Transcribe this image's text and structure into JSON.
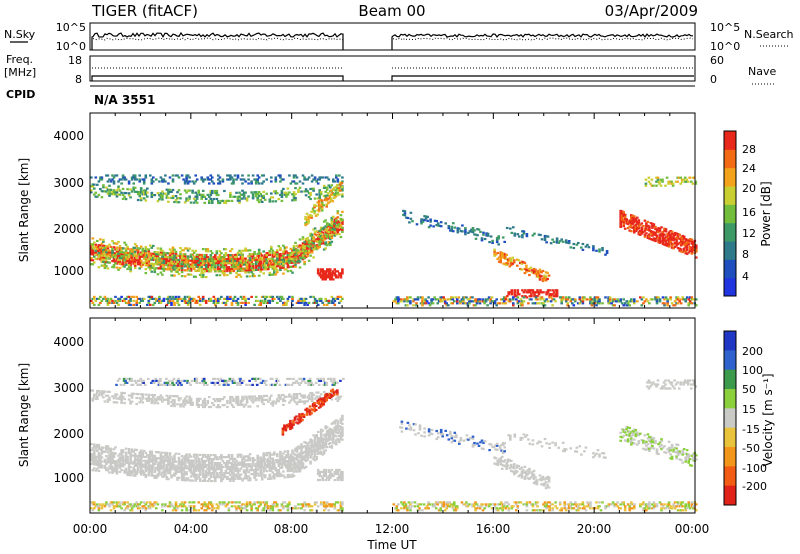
{
  "header": {
    "title": "TIGER (fitACF)",
    "beam": "Beam 00",
    "date": "03/Apr/2009"
  },
  "top_panels": {
    "nsky_label": "N.Sky",
    "nsearch_label": "N.Search",
    "nsky_ticks": [
      "10^5",
      "10^0"
    ],
    "nsearch_ticks": [
      "10^5",
      "10^0"
    ],
    "freq_label": "Freq.",
    "freq_unit": "[MHz]",
    "freq_ticks": [
      "18",
      "8"
    ],
    "nave_label": "Nave",
    "nave_ticks": [
      "60",
      "0"
    ],
    "cpid_label": "CPID",
    "cpid_value": "N/A 3551"
  },
  "chart_data": [
    {
      "type": "heatmap",
      "name": "power-panel",
      "ylabel": "Slant Range [km]",
      "yticks": [
        "4000",
        "3000",
        "2000",
        "1000"
      ],
      "ylim": [
        200,
        4600
      ],
      "xlim_hours": [
        0,
        24
      ],
      "colorbar_label": "Power [dB]",
      "colorbar_ticks": [
        "28",
        "24",
        "20",
        "16",
        "12",
        "8",
        "4"
      ],
      "colors": [
        "#2035e0",
        "#1f4fbf",
        "#2e7a8a",
        "#3d9a66",
        "#72bd3c",
        "#c9cf32",
        "#f2a21b",
        "#f26a14",
        "#e8281a"
      ],
      "data_gaps_hours": [
        [
          10.0,
          12.0
        ]
      ]
    },
    {
      "type": "heatmap",
      "name": "velocity-panel",
      "ylabel": "Slant Range [km]",
      "yticks": [
        "4000",
        "3000",
        "2000",
        "1000"
      ],
      "ylim": [
        200,
        4600
      ],
      "xlim_hours": [
        0,
        24
      ],
      "colorbar_label": "Velocity [m s⁻¹]",
      "colorbar_ticks": [
        "200",
        "100",
        "50",
        "15",
        "-15",
        "-50",
        "-100",
        "-200"
      ],
      "colors": [
        "#2036c4",
        "#2f62cc",
        "#3b9a4c",
        "#8ccf3d",
        "#c9c9c6",
        "#e8c33b",
        "#f2961c",
        "#f25c14",
        "#e02218"
      ],
      "data_gaps_hours": [
        [
          10.0,
          12.0
        ]
      ]
    }
  ],
  "xaxis": {
    "ticks": [
      "00:00",
      "04:00",
      "08:00",
      "12:00",
      "16:00",
      "20:00",
      "00:00"
    ],
    "label": "Time UT"
  }
}
